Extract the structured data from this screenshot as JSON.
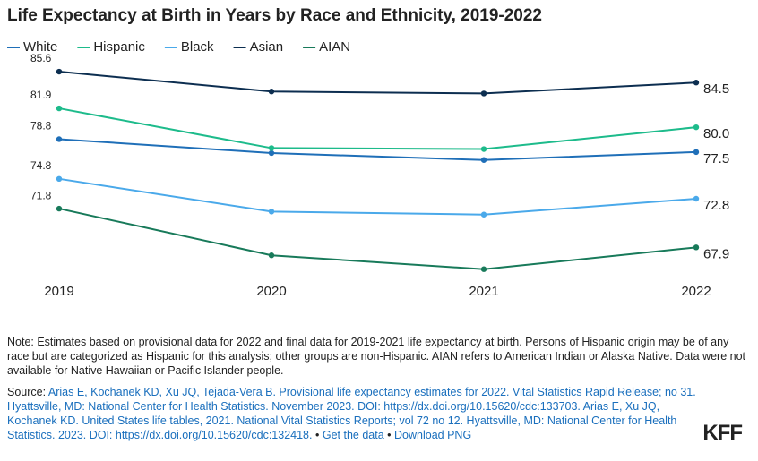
{
  "chart_data": {
    "type": "line",
    "title": "Life Expectancy at Birth in Years by Race and Ethnicity, 2019-2022",
    "categories": [
      "2019",
      "2020",
      "2021",
      "2022"
    ],
    "series": [
      {
        "name": "White",
        "color": "#1f6fb8",
        "values": [
          78.8,
          77.4,
          76.7,
          77.5
        ],
        "value_labels": [
          "78.8",
          null,
          null,
          "77.5"
        ]
      },
      {
        "name": "Hispanic",
        "color": "#1dbb8b",
        "values": [
          81.9,
          77.9,
          77.8,
          80.0
        ],
        "value_labels": [
          "81.9",
          null,
          null,
          "80.0"
        ]
      },
      {
        "name": "Black",
        "color": "#4aa9ea",
        "values": [
          74.8,
          71.5,
          71.2,
          72.8
        ],
        "value_labels": [
          "74.8",
          null,
          null,
          "72.8"
        ]
      },
      {
        "name": "Asian",
        "color": "#0c2e50",
        "values": [
          85.6,
          83.6,
          83.4,
          84.5
        ],
        "value_labels": [
          "85.6",
          null,
          null,
          "84.5"
        ]
      },
      {
        "name": "AIAN",
        "color": "#187a5a",
        "values": [
          71.8,
          67.1,
          65.7,
          67.9
        ],
        "value_labels": [
          "71.8",
          null,
          null,
          "67.9"
        ]
      }
    ],
    "ylim": [
      65,
      86
    ],
    "legend": "top-left"
  },
  "note": "Note: Estimates based on provisional data for 2022 and final data for 2019-2021 life expectancy at birth. Persons of Hispanic origin may be of any race but are categorized as Hispanic for this analysis; other groups are non-Hispanic. AIAN refers to American Indian or Alaska Native. Data were not available for Native Hawaiian or Pacific Islander people.",
  "source": {
    "label": "Source:",
    "text": "Arias E, Kochanek KD, Xu JQ, Tejada-Vera B. Provisional life expectancy estimates for 2022. Vital Statistics Rapid Release; no 31. Hyattsville, MD: National Center for Health Statistics. November 2023. DOI: https://dx.doi.org/10.15620/cdc:133703. Arias E, Xu JQ, Kochanek KD. United States life tables, 2021. National Vital Statistics Reports; vol 72 no 12. Hyattsville, MD: National Center for Health Statistics. 2023. DOI: https://dx.doi.org/10.15620/cdc:132418.",
    "separator": "•",
    "links": [
      "Get the data",
      "Download PNG"
    ]
  },
  "logo": "KFF"
}
